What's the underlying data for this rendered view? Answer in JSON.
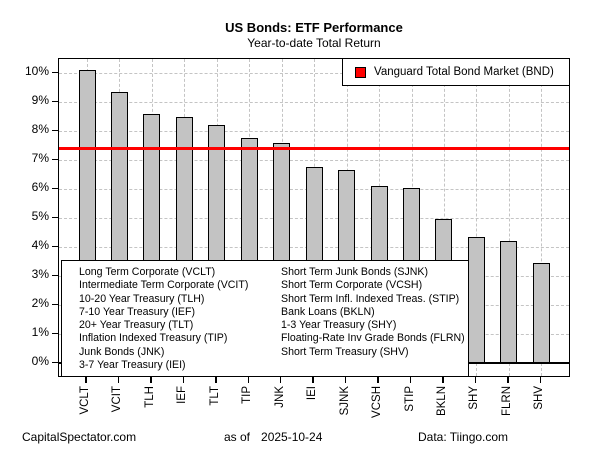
{
  "header": {
    "title": "US Bonds: ETF Performance",
    "subtitle": "Year-to-date Total Return"
  },
  "legend": {
    "label": "Vanguard Total Bond Market (BND)",
    "marker_color": "#ff0000"
  },
  "chart_data": {
    "type": "bar",
    "title": "US Bonds: ETF Performance",
    "subtitle": "Year-to-date Total Return",
    "categories": [
      "VCLT",
      "VCIT",
      "TLH",
      "IEF",
      "TLT",
      "TIP",
      "JNK",
      "IEI",
      "SJNK",
      "VCSH",
      "STIP",
      "BKLN",
      "SHY",
      "FLRN",
      "SHV"
    ],
    "values": [
      10.1,
      9.35,
      8.6,
      8.5,
      8.2,
      7.75,
      7.6,
      6.75,
      6.65,
      6.1,
      6.05,
      4.95,
      4.35,
      4.2,
      3.45
    ],
    "unit": "%",
    "ylim": [
      0,
      10.5
    ],
    "ytick_step": 1,
    "ytick_labels": [
      "0%",
      "1%",
      "2%",
      "3%",
      "4%",
      "5%",
      "6%",
      "7%",
      "8%",
      "9%",
      "10%"
    ],
    "grid": true,
    "bar_color": "#c3c3c3",
    "reference_line": {
      "value": 7.4,
      "label": "Vanguard Total Bond Market (BND)",
      "color": "#ff0000"
    },
    "legend_position": "top-right"
  },
  "etf_key": {
    "left_column": [
      "Long Term Corporate (VCLT)",
      "Intermediate Term Corporate (VCIT)",
      "10-20 Year Treasury (TLH)",
      "7-10 Year Treasury (IEF)",
      "20+ Year Treasury (TLT)",
      "Inflation Indexed Treasury (TIP)",
      "Junk Bonds (JNK)",
      "3-7 Year Treasury (IEI)"
    ],
    "right_column": [
      "Short Term Junk Bonds (SJNK)",
      "Short Term Corporate (VCSH)",
      "Short Term Infl. Indexed Treas. (STIP)",
      "Bank Loans (BKLN)",
      "1-3 Year Treasury (SHY)",
      "Floating-Rate Inv Grade Bonds (FLRN)",
      "Short Term Treasury (SHV)"
    ]
  },
  "footer": {
    "left": "CapitalSpectator.com",
    "as_of_label": "as of",
    "as_of_date": "2025-10-24",
    "right": "Data: Tiingo.com"
  }
}
